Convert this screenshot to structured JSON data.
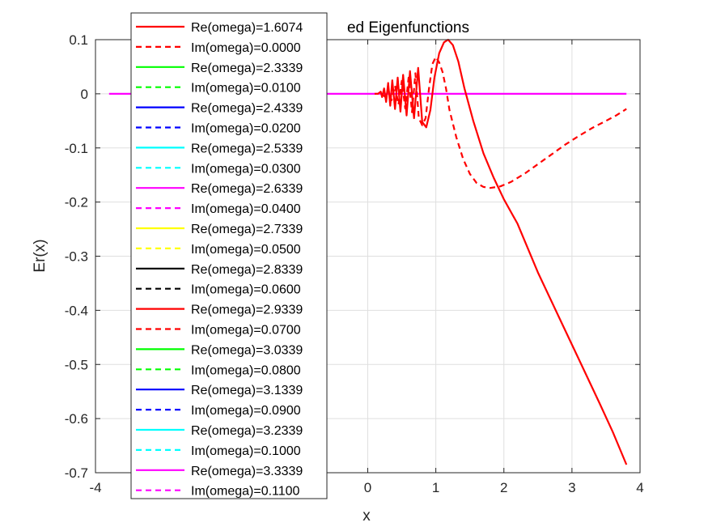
{
  "chart_data": {
    "type": "line",
    "title": "ed Eigenfunctions",
    "xlabel": "x",
    "ylabel": "Er(x)",
    "xlim": [
      -4,
      4
    ],
    "ylim": [
      -0.7,
      0.1
    ],
    "xticks": [
      "-4",
      "0",
      "1",
      "2",
      "3",
      "4"
    ],
    "xtick_values": [
      -4,
      0,
      1,
      2,
      3,
      4
    ],
    "yticks": [
      "0.1",
      "0",
      "-0.1",
      "-0.2",
      "-0.3",
      "-0.4",
      "-0.5",
      "-0.6",
      "-0.7"
    ],
    "ytick_values": [
      0.1,
      0,
      -0.1,
      -0.2,
      -0.3,
      -0.4,
      -0.5,
      -0.6,
      -0.7
    ],
    "grid": true,
    "legend_position": "top-left",
    "legend": [
      {
        "label": "Re(omega)=1.6074",
        "color": "#ff0000",
        "style": "solid"
      },
      {
        "label": "Im(omega)=0.0000",
        "color": "#ff0000",
        "style": "dashed"
      },
      {
        "label": "Re(omega)=2.3339",
        "color": "#00ff00",
        "style": "solid"
      },
      {
        "label": "Im(omega)=0.0100",
        "color": "#00ff00",
        "style": "dashed"
      },
      {
        "label": "Re(omega)=2.4339",
        "color": "#0000ff",
        "style": "solid"
      },
      {
        "label": "Im(omega)=0.0200",
        "color": "#0000ff",
        "style": "dashed"
      },
      {
        "label": "Re(omega)=2.5339",
        "color": "#00ffff",
        "style": "solid"
      },
      {
        "label": "Im(omega)=0.0300",
        "color": "#00ffff",
        "style": "dashed"
      },
      {
        "label": "Re(omega)=2.6339",
        "color": "#ff00ff",
        "style": "solid"
      },
      {
        "label": "Im(omega)=0.0400",
        "color": "#ff00ff",
        "style": "dashed"
      },
      {
        "label": "Re(omega)=2.7339",
        "color": "#ffff00",
        "style": "solid"
      },
      {
        "label": "Im(omega)=0.0500",
        "color": "#ffff00",
        "style": "dashed"
      },
      {
        "label": "Re(omega)=2.8339",
        "color": "#000000",
        "style": "solid"
      },
      {
        "label": "Im(omega)=0.0600",
        "color": "#000000",
        "style": "dashed"
      },
      {
        "label": "Re(omega)=2.9339",
        "color": "#ff0000",
        "style": "solid"
      },
      {
        "label": "Im(omega)=0.0700",
        "color": "#ff0000",
        "style": "dashed"
      },
      {
        "label": "Re(omega)=3.0339",
        "color": "#00ff00",
        "style": "solid"
      },
      {
        "label": "Im(omega)=0.0800",
        "color": "#00ff00",
        "style": "dashed"
      },
      {
        "label": "Re(omega)=3.1339",
        "color": "#0000ff",
        "style": "solid"
      },
      {
        "label": "Im(omega)=0.0900",
        "color": "#0000ff",
        "style": "dashed"
      },
      {
        "label": "Re(omega)=3.2339",
        "color": "#00ffff",
        "style": "solid"
      },
      {
        "label": "Im(omega)=0.1000",
        "color": "#00ffff",
        "style": "dashed"
      },
      {
        "label": "Re(omega)=3.3339",
        "color": "#ff00ff",
        "style": "solid"
      },
      {
        "label": "Im(omega)=0.1100",
        "color": "#ff00ff",
        "style": "dashed"
      }
    ],
    "series": [
      {
        "color": "#ff00ff",
        "style": "solid",
        "x": [
          -3.8,
          3.8
        ],
        "y": [
          0,
          0
        ]
      },
      {
        "color": "#ff0000",
        "style": "solid",
        "x": [
          0.1,
          0.15,
          0.19,
          0.21,
          0.24,
          0.27,
          0.3,
          0.33,
          0.36,
          0.4,
          0.44,
          0.48,
          0.52,
          0.57,
          0.62,
          0.68,
          0.74,
          0.8,
          0.86,
          0.92,
          0.98,
          1.05,
          1.12,
          1.18,
          1.25,
          1.33,
          1.42,
          1.55,
          1.7,
          1.85,
          2.0,
          2.2,
          2.5,
          2.8,
          3.1,
          3.4,
          3.6,
          3.8
        ],
        "y": [
          0,
          0.0,
          0.004,
          -0.006,
          0.01,
          -0.015,
          0.02,
          -0.022,
          0.025,
          -0.028,
          0.03,
          -0.033,
          0.035,
          -0.04,
          0.042,
          -0.045,
          0.048,
          -0.052,
          -0.062,
          -0.03,
          0.03,
          0.075,
          0.095,
          0.1,
          0.09,
          0.06,
          0.01,
          -0.05,
          -0.11,
          -0.155,
          -0.195,
          -0.24,
          -0.33,
          -0.41,
          -0.49,
          -0.57,
          -0.625,
          -0.685
        ]
      },
      {
        "color": "#ff0000",
        "style": "dashed",
        "x": [
          0.2,
          0.25,
          0.3,
          0.35,
          0.4,
          0.45,
          0.5,
          0.55,
          0.6,
          0.65,
          0.7,
          0.75,
          0.8,
          0.85,
          0.9,
          0.95,
          1.0,
          1.05,
          1.1,
          1.15,
          1.2,
          1.3,
          1.4,
          1.5,
          1.6,
          1.7,
          1.8,
          1.95,
          2.1,
          2.3,
          2.5,
          2.7,
          2.9,
          3.1,
          3.3,
          3.5,
          3.65,
          3.8
        ],
        "y": [
          0,
          -0.005,
          0.008,
          -0.012,
          0.015,
          -0.02,
          0.024,
          -0.027,
          0.03,
          -0.034,
          0.038,
          -0.045,
          -0.058,
          -0.045,
          0.01,
          0.055,
          0.068,
          0.058,
          0.04,
          0.01,
          -0.03,
          -0.08,
          -0.12,
          -0.148,
          -0.165,
          -0.172,
          -0.174,
          -0.171,
          -0.163,
          -0.148,
          -0.13,
          -0.112,
          -0.094,
          -0.078,
          -0.063,
          -0.05,
          -0.04,
          -0.028
        ]
      }
    ]
  }
}
